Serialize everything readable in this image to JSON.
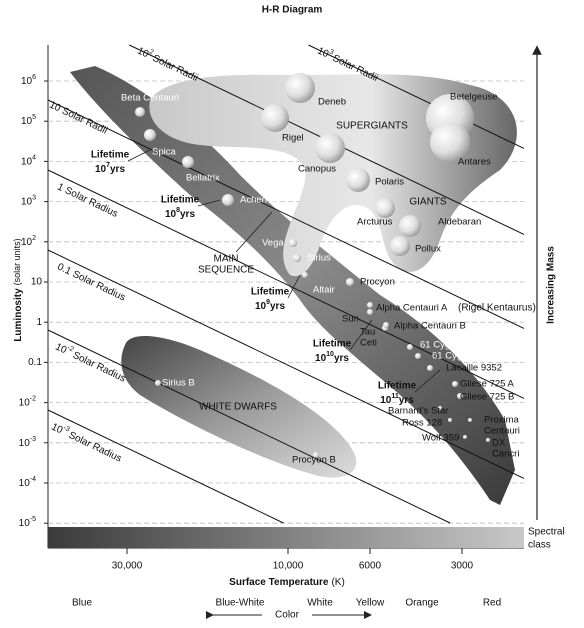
{
  "title": "H-R Diagram",
  "y_axis": {
    "label": "Luminosity",
    "unit": "(solar units)",
    "ticks": [
      {
        "base": "10",
        "exp": "6"
      },
      {
        "base": "10",
        "exp": "5"
      },
      {
        "base": "10",
        "exp": "4"
      },
      {
        "base": "10",
        "exp": "3"
      },
      {
        "base": "10",
        "exp": "2"
      },
      "10",
      "1",
      "0.1",
      {
        "base": "10",
        "exp": "-2"
      },
      {
        "base": "10",
        "exp": "-3"
      },
      {
        "base": "10",
        "exp": "-4"
      },
      {
        "base": "10",
        "exp": "-5"
      }
    ]
  },
  "x_axis": {
    "label": "Surface Temperature",
    "unit": "(K)",
    "ticks": [
      "30,000",
      "10,000",
      "6000",
      "3000"
    ]
  },
  "spectral_class": {
    "label": [
      "Spectral",
      "class"
    ],
    "classes": [
      "O",
      "B",
      "A",
      "F",
      "G",
      "K",
      "M"
    ]
  },
  "color_scale": {
    "label": "Color",
    "names": [
      "Blue",
      "Blue-White",
      "White",
      "Yellow",
      "Orange",
      "Red"
    ]
  },
  "mass_label": "Increasing Mass",
  "radius_lines": [
    {
      "base": "10",
      "exp": "3",
      "unit": "Solar Radii"
    },
    {
      "base": "10",
      "exp": "2",
      "unit": "Solar Radii"
    },
    {
      "base": "10",
      "unit": "Solar Radii"
    },
    {
      "base": "1",
      "unit": "Solar Radius"
    },
    {
      "base": "0.1",
      "unit": "Solar Radius"
    },
    {
      "base": "10",
      "exp": "-2",
      "unit": "Solar Radius"
    },
    {
      "base": "10",
      "exp": "-3",
      "unit": "Solar Radius"
    }
  ],
  "regions": {
    "supergiants": "SUPERGIANTS",
    "giants": "GIANTS",
    "main_sequence": [
      "MAIN",
      "SEQUENCE"
    ],
    "white_dwarfs": "WHITE DWARFS"
  },
  "lifetimes": [
    {
      "label": "Lifetime",
      "base": "10",
      "exp": "7",
      "unit": "yrs"
    },
    {
      "label": "Lifetime",
      "base": "10",
      "exp": "8",
      "unit": "yrs"
    },
    {
      "label": "Lifetime",
      "base": "10",
      "exp": "9",
      "unit": "yrs"
    },
    {
      "label": "Lifetime",
      "base": "10",
      "exp": "10",
      "unit": "yrs"
    },
    {
      "label": "Lifetime",
      "base": "10",
      "exp": "11",
      "unit": "yrs"
    }
  ],
  "stars": [
    {
      "name": [
        "Beta Centauri"
      ]
    },
    {
      "name": [
        "Spica"
      ]
    },
    {
      "name": [
        "Bellatrix"
      ]
    },
    {
      "name": [
        "Achernar"
      ]
    },
    {
      "name": [
        "Vega"
      ]
    },
    {
      "name": [
        "Sirius"
      ]
    },
    {
      "name": [
        "Altair"
      ]
    },
    {
      "name": [
        "Procyon"
      ]
    },
    {
      "name": [
        "Sun"
      ]
    },
    {
      "name": [
        "Alpha Centauri A"
      ],
      "note": "(Rigel Kentaurus)"
    },
    {
      "name": [
        "Tau",
        "Ceti"
      ]
    },
    {
      "name": [
        "Alpha Centauri B"
      ]
    },
    {
      "name": [
        "61 Cygni A"
      ]
    },
    {
      "name": [
        "61 Cygni B"
      ]
    },
    {
      "name": [
        "Lacaille 9352"
      ]
    },
    {
      "name": [
        "Gliese 725 A"
      ]
    },
    {
      "name": [
        "Gliese 725 B"
      ]
    },
    {
      "name": [
        "Barnard's Star"
      ]
    },
    {
      "name": [
        "Ross 128"
      ]
    },
    {
      "name": [
        "Proxima",
        "Centauri"
      ]
    },
    {
      "name": [
        "Wolf 359"
      ]
    },
    {
      "name": [
        "DX",
        "Cancri"
      ]
    },
    {
      "name": [
        "Deneb"
      ]
    },
    {
      "name": [
        "Rigel"
      ]
    },
    {
      "name": [
        "Canopus"
      ]
    },
    {
      "name": [
        "Polaris"
      ]
    },
    {
      "name": [
        "Betelgeuse"
      ]
    },
    {
      "name": [
        "Antares"
      ]
    },
    {
      "name": [
        "Arcturus"
      ]
    },
    {
      "name": [
        "Aldebaran"
      ]
    },
    {
      "name": [
        "Pollux"
      ]
    },
    {
      "name": [
        "Sirius B"
      ]
    },
    {
      "name": [
        "Procyon B"
      ]
    }
  ]
}
